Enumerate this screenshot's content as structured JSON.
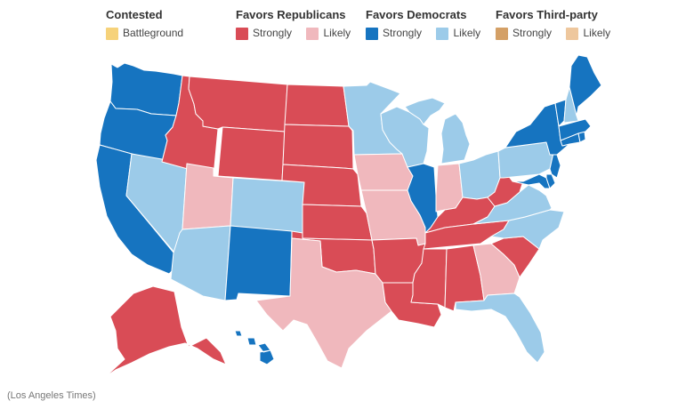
{
  "legend": {
    "contested": {
      "title": "Contested",
      "items": [
        {
          "label": "Battleground",
          "color": "#f6d27a"
        }
      ]
    },
    "republicans": {
      "title": "Favors Republicans",
      "items": [
        {
          "label": "Strongly",
          "color": "#d94c56"
        },
        {
          "label": "Likely",
          "color": "#f0b8bd"
        }
      ]
    },
    "democrats": {
      "title": "Favors Democrats",
      "items": [
        {
          "label": "Strongly",
          "color": "#1674c0"
        },
        {
          "label": "Likely",
          "color": "#9ccbe9"
        }
      ]
    },
    "third_party": {
      "title": "Favors Third-party",
      "items": [
        {
          "label": "Strongly",
          "color": "#d4a066"
        },
        {
          "label": "Likely",
          "color": "#eec79d"
        }
      ]
    }
  },
  "credit": "(Los Angeles Times)",
  "colors": {
    "rep_strong": "#d94c56",
    "rep_likely": "#f0b8bd",
    "dem_strong": "#1674c0",
    "dem_likely": "#9ccbe9",
    "border": "#ffffff"
  },
  "states": {
    "WA": "dem_strong",
    "OR": "dem_strong",
    "CA": "dem_strong",
    "NV": "dem_likely",
    "ID": "rep_strong",
    "MT": "rep_strong",
    "WY": "rep_strong",
    "UT": "rep_likely",
    "AZ": "dem_likely",
    "CO": "dem_likely",
    "NM": "dem_strong",
    "ND": "rep_strong",
    "SD": "rep_strong",
    "NE": "rep_strong",
    "KS": "rep_strong",
    "OK": "rep_strong",
    "TX": "rep_likely",
    "MN": "dem_likely",
    "IA": "rep_likely",
    "MO": "rep_likely",
    "AR": "rep_strong",
    "LA": "rep_strong",
    "WI": "dem_likely",
    "IL": "dem_strong",
    "MI": "dem_likely",
    "IN": "rep_likely",
    "OH": "dem_likely",
    "KY": "rep_strong",
    "TN": "rep_strong",
    "MS": "rep_strong",
    "AL": "rep_strong",
    "GA": "rep_likely",
    "FL": "dem_likely",
    "SC": "rep_strong",
    "NC": "dem_likely",
    "VA": "dem_likely",
    "WV": "rep_strong",
    "PA": "dem_likely",
    "NY": "dem_strong",
    "VT": "dem_strong",
    "NH": "dem_likely",
    "ME": "dem_strong",
    "MA": "dem_strong",
    "RI": "dem_strong",
    "CT": "dem_strong",
    "NJ": "dem_strong",
    "DE": "dem_strong",
    "MD": "dem_strong",
    "AK": "rep_strong",
    "HI": "dem_strong"
  }
}
